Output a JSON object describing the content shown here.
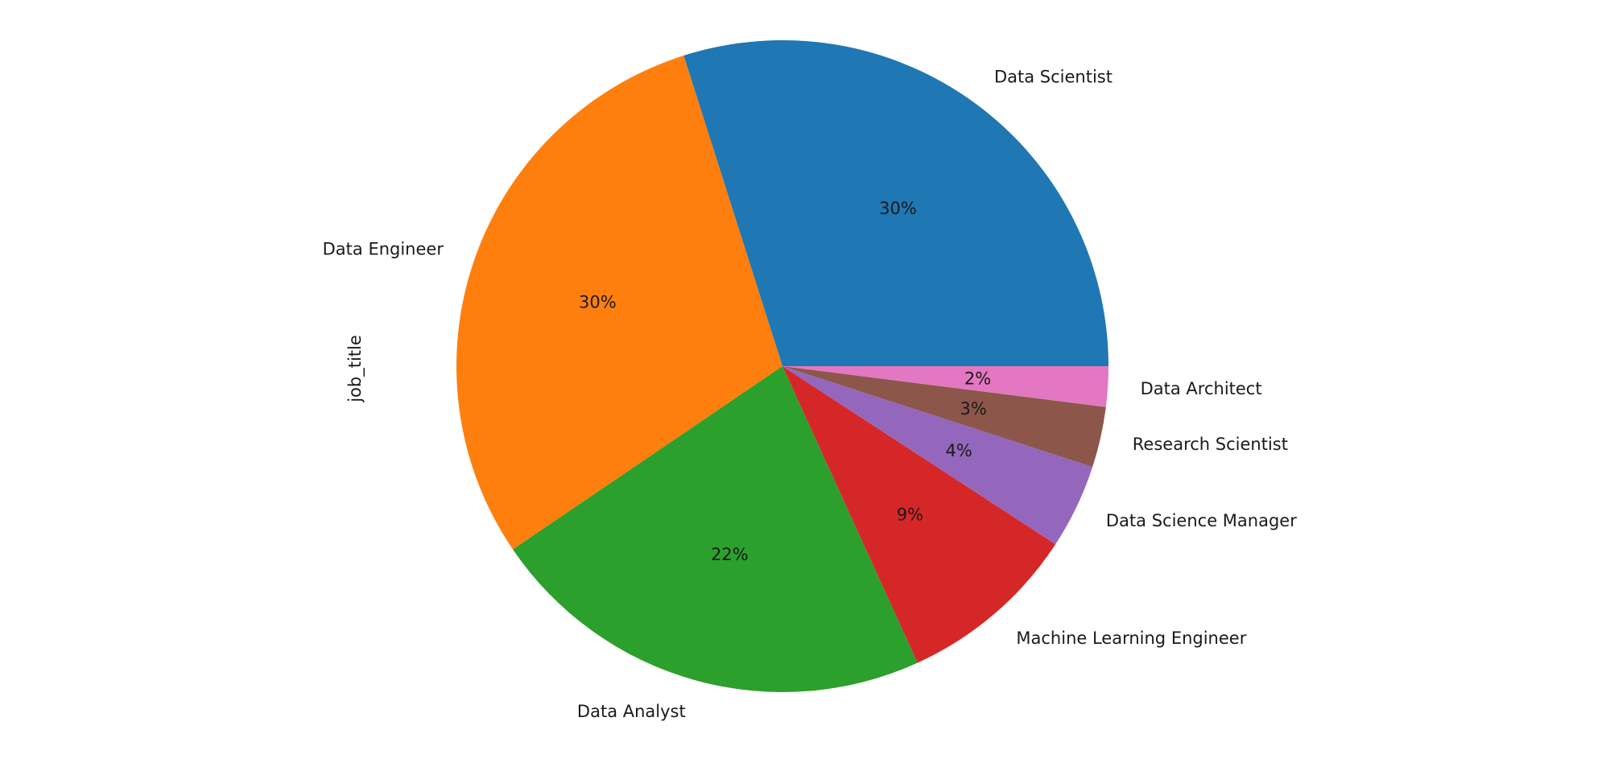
{
  "chart_data": {
    "type": "pie",
    "ylabel": "job_title",
    "start_angle_deg": 0,
    "direction": "counterclockwise",
    "slices": [
      {
        "label": "Data Scientist",
        "value": 29.9,
        "pct_text": "30%",
        "color": "#1f77b4"
      },
      {
        "label": "Data Engineer",
        "value": 29.6,
        "pct_text": "30%",
        "color": "#ff7f0e"
      },
      {
        "label": "Data Analyst",
        "value": 22.3,
        "pct_text": "22%",
        "color": "#2ca02c"
      },
      {
        "label": "Machine Learning Engineer",
        "value": 9.0,
        "pct_text": "9%",
        "color": "#d62728"
      },
      {
        "label": "Data Science Manager",
        "value": 4.2,
        "pct_text": "4%",
        "color": "#9467bd"
      },
      {
        "label": "Research Scientist",
        "value": 3.0,
        "pct_text": "3%",
        "color": "#8c564b"
      },
      {
        "label": "Data Architect",
        "value": 2.0,
        "pct_text": "2%",
        "color": "#e377c2"
      }
    ]
  }
}
